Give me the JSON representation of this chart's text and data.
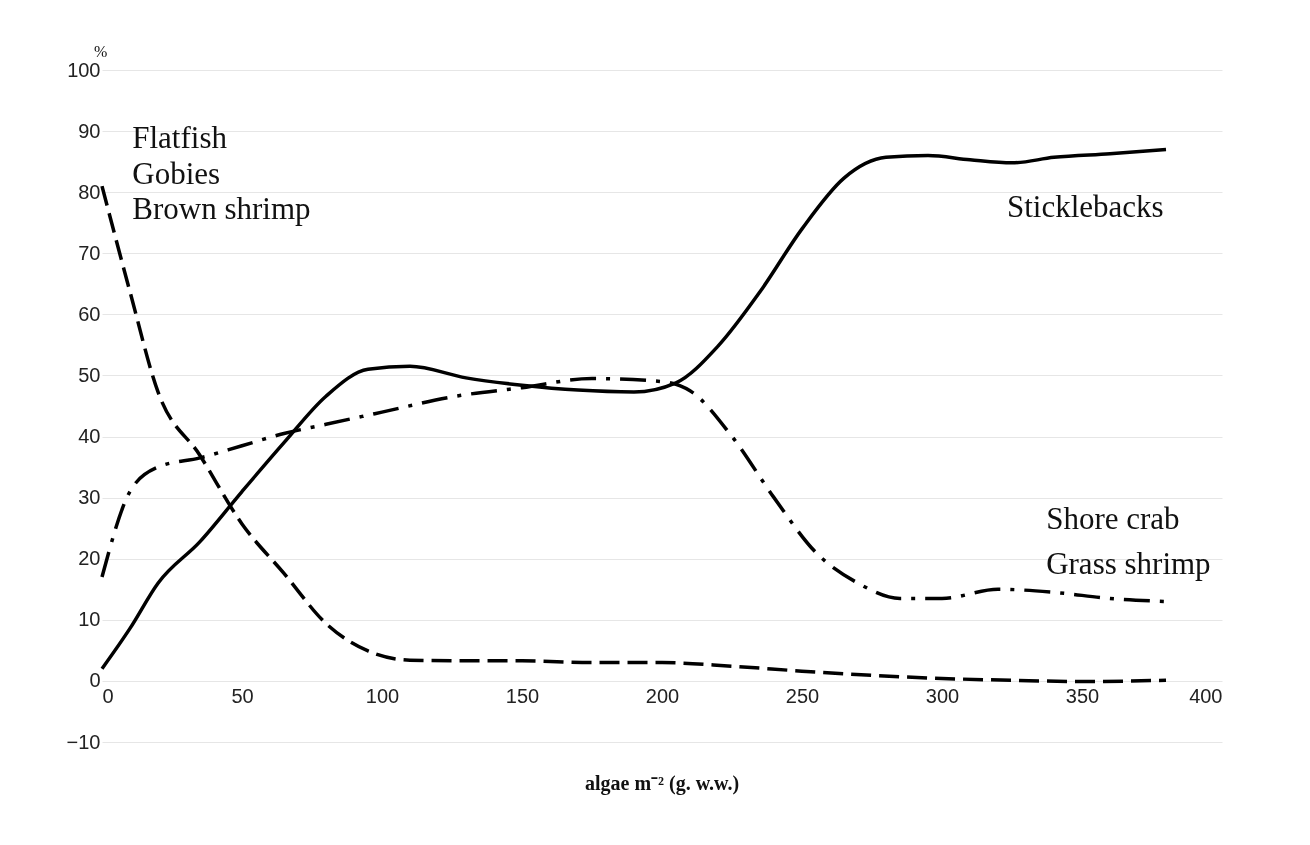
{
  "chart_data": {
    "type": "line",
    "xlabel": "algae m⁻² (g. w.w.)",
    "ylabel": "%",
    "xlim": [
      0,
      400
    ],
    "xticks": [
      0,
      50,
      100,
      150,
      200,
      250,
      300,
      350,
      400
    ],
    "ylim": [
      -10,
      100
    ],
    "yticks": [
      -10,
      0,
      10,
      20,
      30,
      40,
      50,
      60,
      70,
      80,
      90,
      100
    ],
    "grid": "y",
    "marker": "none",
    "series": [
      {
        "color": "#000000",
        "line_style": "solid",
        "x": [
          0,
          10,
          20,
          35,
          50,
          65,
          80,
          95,
          110,
          130,
          150,
          170,
          190,
          205,
          220,
          235,
          250,
          265,
          280,
          295,
          310,
          325,
          340,
          360,
          380
        ],
        "values": [
          2,
          8.6,
          16,
          22.8,
          31,
          39,
          46.6,
          51,
          51.5,
          49.6,
          48.4,
          47.6,
          47.3,
          48.8,
          54.8,
          63.7,
          74,
          82.3,
          85.7,
          86,
          85.3,
          84.8,
          85.7,
          86.3,
          87
        ]
      },
      {
        "color": "#000000",
        "line_style": "dashed",
        "x": [
          0,
          10,
          20,
          35,
          50,
          65,
          80,
          95,
          110,
          130,
          150,
          175,
          200,
          225,
          250,
          275,
          300,
          325,
          350,
          380
        ],
        "values": [
          81,
          63.7,
          47.3,
          36.9,
          25.7,
          17.6,
          9.4,
          4.9,
          3.4,
          3.3,
          3.3,
          3,
          3,
          2.4,
          1.6,
          0.9,
          0.4,
          0.1,
          -0.1,
          0.1
        ]
      },
      {
        "color": "#000000",
        "line_style": "dashdot",
        "x": [
          0,
          10,
          20,
          35,
          50,
          65,
          80,
          100,
          125,
          150,
          175,
          200,
          210,
          225,
          240,
          255,
          270,
          285,
          300,
          320,
          340,
          360,
          380
        ],
        "values": [
          17,
          31,
          35,
          36.5,
          38.5,
          40.5,
          42,
          44,
          46.5,
          48,
          49.5,
          49,
          47.5,
          40,
          30,
          21,
          16,
          13.5,
          13.5,
          15,
          14.5,
          13.5,
          13
        ]
      }
    ],
    "annotations": [
      "Flatfish",
      "Gobies",
      "Brown shrimp",
      "Sticklebacks",
      "Shore crab",
      "Grass shrimp"
    ]
  }
}
